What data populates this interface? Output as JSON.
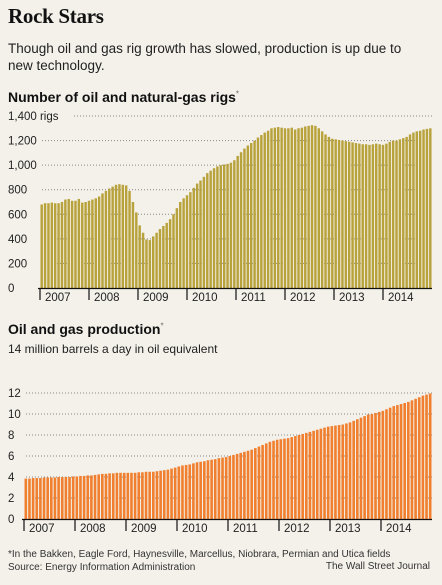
{
  "header": {
    "title": "Rock Stars",
    "subtitle": "Though oil and gas rig growth has slowed, production is up due to new technology."
  },
  "footer": {
    "footnote": "*In the Bakken, Eagle Ford, Haynesville, Marcellus, Niobrara, Permian and Utica fields",
    "source": "Source: Energy Information Administration",
    "credit": "The Wall Street Journal"
  },
  "chart_data": [
    {
      "type": "bar",
      "title": "Number of oil and natural-gas rigs",
      "title_mark": "*",
      "unit_suffix": "rigs",
      "color": "#b8a23c",
      "ylim": [
        0,
        1400
      ],
      "yticks": [
        0,
        200,
        400,
        600,
        800,
        1000,
        1200,
        1400
      ],
      "ytick_labels": [
        "0",
        "200",
        "400",
        "600",
        "800",
        "1,000",
        "1,200",
        "1,400"
      ],
      "grid": true,
      "xlabels": [
        "2007",
        "2008",
        "2009",
        "2010",
        "2011",
        "2012",
        "2013",
        "2014"
      ],
      "series": [
        {
          "values": [
            680,
            690,
            690,
            695,
            690,
            690,
            700,
            720,
            725,
            710,
            710,
            725,
            695,
            700,
            710,
            720,
            730,
            745,
            770,
            790,
            810,
            825,
            840,
            845,
            840,
            835,
            790,
            700,
            615,
            510,
            450,
            395,
            390,
            420,
            450,
            480,
            505,
            530,
            560,
            600,
            650,
            700,
            730,
            755,
            780,
            815,
            850,
            875,
            905,
            935,
            955,
            975,
            990,
            1000,
            1005,
            1010,
            1020,
            1040,
            1075,
            1105,
            1135,
            1160,
            1180,
            1200,
            1225,
            1245,
            1265,
            1280,
            1300,
            1305,
            1310,
            1305,
            1300,
            1300,
            1305,
            1290,
            1300,
            1305,
            1315,
            1320,
            1325,
            1320,
            1300,
            1275,
            1250,
            1230,
            1215,
            1210,
            1205,
            1200,
            1195,
            1190,
            1185,
            1180,
            1175,
            1170,
            1170,
            1165,
            1170,
            1175,
            1170,
            1165,
            1175,
            1190,
            1200,
            1200,
            1210,
            1220,
            1230,
            1250,
            1265,
            1275,
            1280,
            1290,
            1295,
            1300
          ]
        }
      ]
    },
    {
      "type": "bar",
      "title": "Oil and gas production",
      "title_mark": "*",
      "unit_label": "14 million barrels a day in oil equivalent",
      "color": "#f08030",
      "ylim": [
        0,
        14
      ],
      "yticks": [
        0,
        2,
        4,
        6,
        8,
        10,
        12
      ],
      "ytick_labels": [
        "0",
        "2",
        "4",
        "6",
        "8",
        "10",
        "12"
      ],
      "grid": true,
      "xlabels": [
        "2007",
        "2008",
        "2009",
        "2010",
        "2011",
        "2012",
        "2013",
        "2014"
      ],
      "series": [
        {
          "values": [
            3.85,
            3.85,
            3.9,
            3.9,
            3.9,
            3.95,
            3.95,
            3.95,
            3.95,
            4.0,
            4.0,
            4.0,
            4.0,
            4.05,
            4.05,
            4.1,
            4.1,
            4.15,
            4.15,
            4.2,
            4.25,
            4.3,
            4.3,
            4.35,
            4.35,
            4.4,
            4.4,
            4.4,
            4.4,
            4.4,
            4.4,
            4.45,
            4.45,
            4.5,
            4.5,
            4.5,
            4.55,
            4.6,
            4.65,
            4.7,
            4.8,
            4.9,
            5.0,
            5.1,
            5.15,
            5.2,
            5.3,
            5.4,
            5.45,
            5.5,
            5.6,
            5.65,
            5.7,
            5.8,
            5.85,
            5.9,
            6.0,
            6.1,
            6.2,
            6.3,
            6.4,
            6.5,
            6.6,
            6.75,
            6.9,
            7.05,
            7.2,
            7.35,
            7.45,
            7.55,
            7.6,
            7.65,
            7.7,
            7.8,
            7.9,
            8.0,
            8.1,
            8.2,
            8.3,
            8.4,
            8.5,
            8.6,
            8.7,
            8.8,
            8.85,
            8.9,
            8.95,
            9.0,
            9.1,
            9.2,
            9.35,
            9.5,
            9.65,
            9.8,
            9.95,
            10.0,
            10.1,
            10.2,
            10.3,
            10.45,
            10.6,
            10.75,
            10.85,
            10.95,
            11.05,
            11.15,
            11.3,
            11.45,
            11.6,
            11.75,
            11.85,
            11.95
          ]
        }
      ]
    }
  ]
}
